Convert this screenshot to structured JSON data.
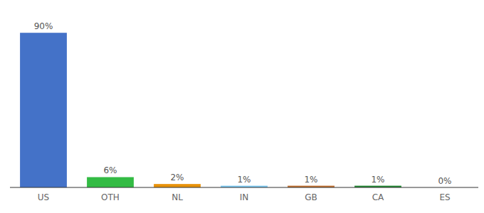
{
  "chart_data": {
    "type": "bar",
    "categories": [
      "US",
      "OTH",
      "NL",
      "IN",
      "GB",
      "CA",
      "ES"
    ],
    "values": [
      90,
      6,
      2,
      1,
      1,
      1,
      0
    ],
    "value_labels": [
      "90%",
      "6%",
      "2%",
      "1%",
      "1%",
      "1%",
      "0%"
    ],
    "colors": [
      "#4472c8",
      "#33bb44",
      "#e8920a",
      "#7dc8f0",
      "#c07030",
      "#228833",
      "#aaaaaa"
    ],
    "ylim": [
      0,
      100
    ],
    "data_labels": true,
    "tick_labels": "x",
    "grid": false
  }
}
